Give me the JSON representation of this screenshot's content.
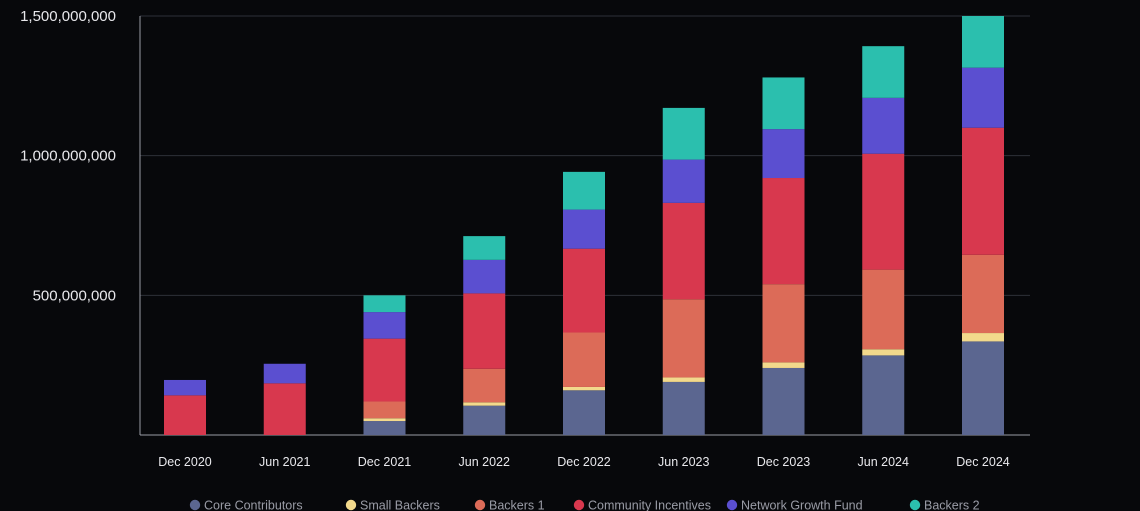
{
  "chart_data": {
    "type": "bar",
    "stacked": true,
    "title": "",
    "xlabel": "",
    "ylabel": "",
    "ylim": [
      0,
      1500000000
    ],
    "yticks": [
      500000000,
      1000000000,
      1500000000
    ],
    "ytick_labels": [
      "500,000,000",
      "1,000,000,000",
      "1,500,000,000"
    ],
    "grid": true,
    "legend_position": "bottom",
    "categories": [
      "Dec 2020",
      "Jun 2021",
      "Dec 2021",
      "Jun 2022",
      "Dec 2022",
      "Jun 2023",
      "Dec 2023",
      "Jun 2024",
      "Dec 2024"
    ],
    "series": [
      {
        "name": "Core Contributors",
        "color": "#5b6690",
        "values": [
          0,
          0,
          50000000,
          105000000,
          160000000,
          190000000,
          240000000,
          285000000,
          335000000
        ]
      },
      {
        "name": "Small Backers",
        "color": "#f2d98c",
        "values": [
          0,
          0,
          10000000,
          12000000,
          12000000,
          16000000,
          20000000,
          22000000,
          30000000
        ]
      },
      {
        "name": "Backers 1",
        "color": "#dc6b58",
        "values": [
          0,
          0,
          60000000,
          120000000,
          195000000,
          280000000,
          280000000,
          285000000,
          280000000
        ]
      },
      {
        "name": "Community Incentives",
        "color": "#d8384e",
        "values": [
          142000000,
          185000000,
          225000000,
          270000000,
          300000000,
          345000000,
          380000000,
          415000000,
          455000000
        ]
      },
      {
        "name": "Network Growth Fund",
        "color": "#5b4fd0",
        "values": [
          55000000,
          70000000,
          95000000,
          120000000,
          140000000,
          155000000,
          175000000,
          200000000,
          215000000
        ]
      },
      {
        "name": "Backers 2",
        "color": "#2bbfae",
        "values": [
          0,
          0,
          60000000,
          85000000,
          135000000,
          185000000,
          185000000,
          185000000,
          185000000
        ]
      }
    ]
  },
  "theme": {
    "background": "#07080b",
    "axis": "#9a9ca6",
    "grid": "#2e3038",
    "tick_text": "#e8e8ec",
    "legend_text": "#9a9ca6"
  }
}
